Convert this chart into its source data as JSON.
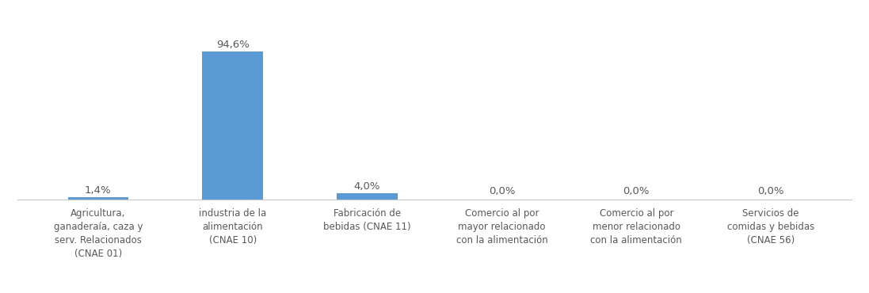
{
  "categories": [
    "Agricultura,\nganaderaía, caza y\nserv. Relacionados\n(CNAE 01)",
    "industria de la\nalimentación\n(CNAE 10)",
    "Fabricación de\nbebidas (CNAE 11)",
    "Comercio al por\nmayor relacionado\ncon la alimentación",
    "Comercio al por\nmenor relacionado\ncon la alimentación",
    "Servicios de\ncomidas y bebidas\n(CNAE 56)"
  ],
  "values": [
    1.4,
    94.6,
    4.0,
    0.0,
    0.0,
    0.0
  ],
  "labels": [
    "1,4%",
    "94,6%",
    "4,0%",
    "0,0%",
    "0,0%",
    "0,0%"
  ],
  "bar_color": "#5B9BD5",
  "background_color": "#ffffff",
  "ylim": [
    0,
    105
  ],
  "bar_width": 0.45,
  "label_fontsize": 9.5,
  "tick_fontsize": 8.5,
  "text_color": "#595959",
  "spine_color": "#C8C8C8"
}
